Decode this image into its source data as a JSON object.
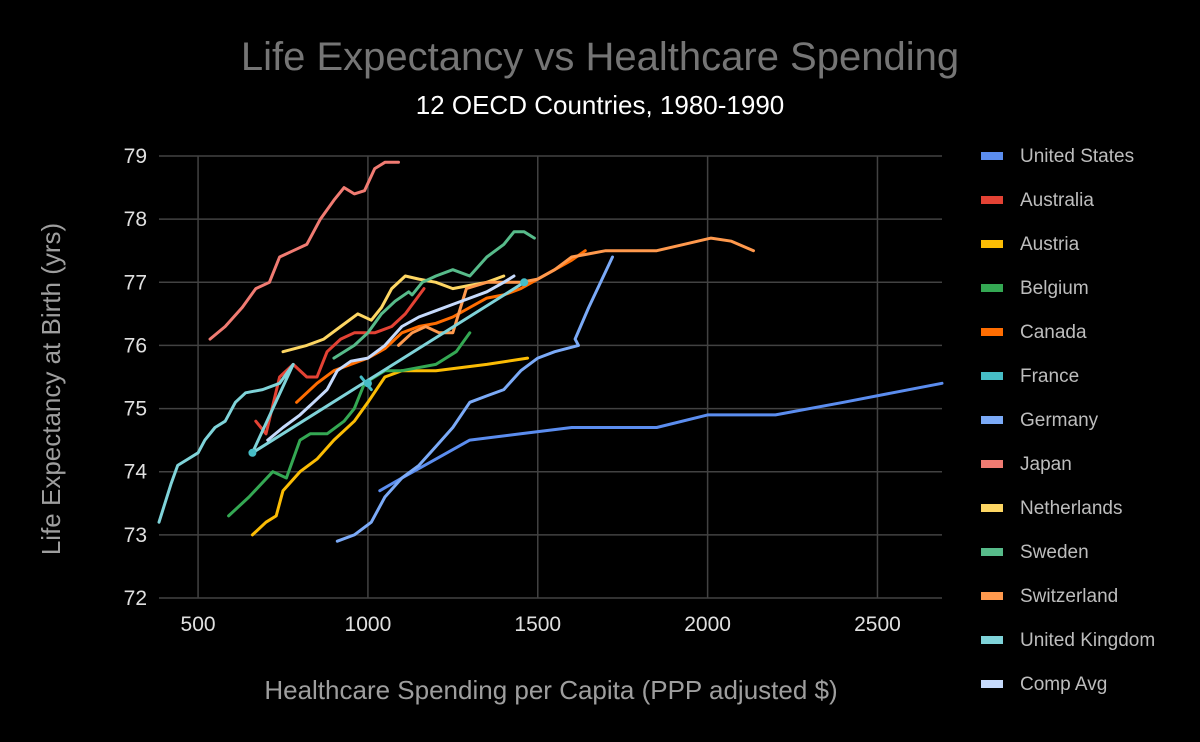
{
  "chart_data": {
    "type": "line",
    "title": "Life Expectancy vs Healthcare Spending",
    "subtitle": "12 OECD Countries, 1980-1990",
    "xlabel": "Healthcare Spending per Capita (PPP adjusted $)",
    "ylabel": "Life Expectancy at Birth (yrs)",
    "xlim": [
      385,
      2690
    ],
    "ylim": [
      72,
      79
    ],
    "xticks": [
      500,
      1000,
      1500,
      2000,
      2500
    ],
    "yticks": [
      72,
      73,
      74,
      75,
      76,
      77,
      78,
      79
    ],
    "grid": true,
    "legend_position": "right",
    "background": "#000000",
    "series": [
      {
        "name": "United States",
        "color": "#5b8def",
        "points": [
          [
            1035,
            73.7
          ],
          [
            1100,
            73.9
          ],
          [
            1200,
            74.2
          ],
          [
            1300,
            74.5
          ],
          [
            1450,
            74.6
          ],
          [
            1600,
            74.7
          ],
          [
            1850,
            74.7
          ],
          [
            2000,
            74.9
          ],
          [
            2200,
            74.9
          ],
          [
            2400,
            75.1
          ],
          [
            2690,
            75.4
          ]
        ]
      },
      {
        "name": "Australia",
        "color": "#e34234",
        "points": [
          [
            670,
            74.8
          ],
          [
            700,
            74.6
          ],
          [
            740,
            75.5
          ],
          [
            780,
            75.7
          ],
          [
            820,
            75.5
          ],
          [
            850,
            75.5
          ],
          [
            880,
            75.9
          ],
          [
            920,
            76.1
          ],
          [
            960,
            76.2
          ],
          [
            1020,
            76.2
          ],
          [
            1070,
            76.3
          ],
          [
            1110,
            76.5
          ],
          [
            1165,
            76.9
          ]
        ]
      },
      {
        "name": "Austria",
        "color": "#fbbc04",
        "points": [
          [
            660,
            73.0
          ],
          [
            700,
            73.2
          ],
          [
            730,
            73.3
          ],
          [
            750,
            73.7
          ],
          [
            800,
            74.0
          ],
          [
            850,
            74.2
          ],
          [
            900,
            74.5
          ],
          [
            960,
            74.8
          ],
          [
            1000,
            75.1
          ],
          [
            1050,
            75.5
          ],
          [
            1100,
            75.6
          ],
          [
            1200,
            75.6
          ],
          [
            1350,
            75.7
          ],
          [
            1470,
            75.8
          ]
        ]
      },
      {
        "name": "Belgium",
        "color": "#34a853",
        "points": [
          [
            590,
            73.3
          ],
          [
            650,
            73.6
          ],
          [
            720,
            74.0
          ],
          [
            760,
            73.9
          ],
          [
            800,
            74.5
          ],
          [
            830,
            74.6
          ],
          [
            880,
            74.6
          ],
          [
            930,
            74.8
          ],
          [
            960,
            75.0
          ],
          [
            990,
            75.4
          ],
          [
            1050,
            75.6
          ],
          [
            1100,
            75.6
          ],
          [
            1200,
            75.7
          ],
          [
            1260,
            75.9
          ],
          [
            1300,
            76.2
          ]
        ]
      },
      {
        "name": "Canada",
        "color": "#ff6d01",
        "points": [
          [
            790,
            75.1
          ],
          [
            850,
            75.4
          ],
          [
            900,
            75.6
          ],
          [
            950,
            75.7
          ],
          [
            1000,
            75.8
          ],
          [
            1050,
            75.95
          ],
          [
            1100,
            76.2
          ],
          [
            1150,
            76.3
          ],
          [
            1200,
            76.35
          ],
          [
            1250,
            76.45
          ],
          [
            1300,
            76.6
          ],
          [
            1350,
            76.75
          ],
          [
            1400,
            76.8
          ],
          [
            1450,
            76.9
          ],
          [
            1500,
            77.05
          ],
          [
            1550,
            77.2
          ],
          [
            1600,
            77.35
          ],
          [
            1640,
            77.5
          ]
        ]
      },
      {
        "name": "France",
        "color": "#46bdc6",
        "points": [
          [
            980,
            75.5
          ],
          [
            1010,
            75.3
          ]
        ]
      },
      {
        "name": "Germany",
        "color": "#7baaf7",
        "points": [
          [
            910,
            72.9
          ],
          [
            960,
            73.0
          ],
          [
            1010,
            73.2
          ],
          [
            1050,
            73.6
          ],
          [
            1100,
            73.9
          ],
          [
            1150,
            74.1
          ],
          [
            1200,
            74.4
          ],
          [
            1250,
            74.7
          ],
          [
            1300,
            75.1
          ],
          [
            1350,
            75.2
          ],
          [
            1400,
            75.3
          ],
          [
            1450,
            75.6
          ],
          [
            1500,
            75.8
          ],
          [
            1550,
            75.9
          ],
          [
            1620,
            76.0
          ],
          [
            1610,
            76.1
          ],
          [
            1650,
            76.6
          ],
          [
            1720,
            77.4
          ]
        ]
      },
      {
        "name": "Japan",
        "color": "#f07b72",
        "points": [
          [
            535,
            76.1
          ],
          [
            580,
            76.3
          ],
          [
            630,
            76.6
          ],
          [
            670,
            76.9
          ],
          [
            710,
            77.0
          ],
          [
            740,
            77.4
          ],
          [
            780,
            77.5
          ],
          [
            820,
            77.6
          ],
          [
            860,
            78.0
          ],
          [
            900,
            78.3
          ],
          [
            930,
            78.5
          ],
          [
            960,
            78.4
          ],
          [
            990,
            78.45
          ],
          [
            1020,
            78.8
          ],
          [
            1050,
            78.9
          ],
          [
            1090,
            78.9
          ]
        ]
      },
      {
        "name": "Netherlands",
        "color": "#fdd663",
        "points": [
          [
            750,
            75.9
          ],
          [
            820,
            76.0
          ],
          [
            870,
            76.1
          ],
          [
            920,
            76.3
          ],
          [
            970,
            76.5
          ],
          [
            1010,
            76.4
          ],
          [
            1040,
            76.6
          ],
          [
            1070,
            76.9
          ],
          [
            1110,
            77.1
          ],
          [
            1150,
            77.05
          ],
          [
            1200,
            77.0
          ],
          [
            1250,
            76.9
          ],
          [
            1300,
            76.95
          ],
          [
            1350,
            77.0
          ],
          [
            1400,
            77.1
          ]
        ]
      },
      {
        "name": "Sweden",
        "color": "#57bb8a",
        "points": [
          [
            900,
            75.8
          ],
          [
            960,
            76.0
          ],
          [
            1000,
            76.2
          ],
          [
            1040,
            76.5
          ],
          [
            1080,
            76.7
          ],
          [
            1120,
            76.85
          ],
          [
            1130,
            76.8
          ],
          [
            1160,
            77.0
          ],
          [
            1200,
            77.1
          ],
          [
            1250,
            77.2
          ],
          [
            1300,
            77.1
          ],
          [
            1350,
            77.4
          ],
          [
            1400,
            77.6
          ],
          [
            1430,
            77.8
          ],
          [
            1460,
            77.8
          ],
          [
            1490,
            77.7
          ]
        ]
      },
      {
        "name": "Switzerland",
        "color": "#ff994d",
        "points": [
          [
            1090,
            76.0
          ],
          [
            1130,
            76.2
          ],
          [
            1170,
            76.3
          ],
          [
            1210,
            76.2
          ],
          [
            1250,
            76.2
          ],
          [
            1290,
            76.9
          ],
          [
            1350,
            77.0
          ],
          [
            1400,
            77.0
          ],
          [
            1450,
            77.0
          ],
          [
            1500,
            77.05
          ],
          [
            1550,
            77.2
          ],
          [
            1600,
            77.4
          ],
          [
            1650,
            77.45
          ],
          [
            1700,
            77.5
          ],
          [
            1770,
            77.5
          ],
          [
            1850,
            77.5
          ],
          [
            1930,
            77.6
          ],
          [
            2010,
            77.7
          ],
          [
            2070,
            77.65
          ],
          [
            2135,
            77.5
          ]
        ]
      },
      {
        "name": "United Kingdom",
        "color": "#7fd3d9",
        "points": [
          [
            385,
            73.2
          ],
          [
            420,
            73.8
          ],
          [
            440,
            74.1
          ],
          [
            470,
            74.2
          ],
          [
            500,
            74.3
          ],
          [
            520,
            74.5
          ],
          [
            550,
            74.7
          ],
          [
            580,
            74.8
          ],
          [
            610,
            75.1
          ],
          [
            640,
            75.25
          ],
          [
            690,
            75.3
          ],
          [
            740,
            75.4
          ],
          [
            780,
            75.7
          ],
          [
            660,
            74.3
          ],
          [
            660,
            74.3
          ],
          [
            1460,
            77.0
          ],
          [
            1460,
            77.0
          ]
        ]
      },
      {
        "name": "Comp Avg",
        "color": "#c6dafc",
        "points": [
          [
            705,
            74.5
          ],
          [
            750,
            74.7
          ],
          [
            800,
            74.9
          ],
          [
            840,
            75.1
          ],
          [
            880,
            75.3
          ],
          [
            910,
            75.6
          ],
          [
            950,
            75.75
          ],
          [
            1000,
            75.8
          ],
          [
            1050,
            76.0
          ],
          [
            1100,
            76.3
          ],
          [
            1150,
            76.45
          ],
          [
            1200,
            76.55
          ],
          [
            1250,
            76.65
          ],
          [
            1300,
            76.75
          ],
          [
            1350,
            76.85
          ],
          [
            1400,
            77.0
          ],
          [
            1430,
            77.1
          ]
        ]
      }
    ],
    "markers": [
      {
        "series": "United Kingdom",
        "x": 660,
        "y": 74.3
      },
      {
        "series": "France",
        "x": 1000,
        "y": 75.4
      },
      {
        "series": "United Kingdom",
        "x": 1460,
        "y": 77.0
      }
    ]
  }
}
